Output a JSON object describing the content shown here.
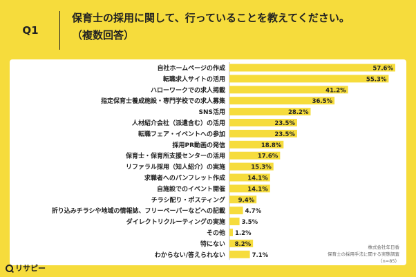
{
  "header": {
    "badge": "Q1",
    "question_line1": "保育士の採用に関して、行っていることを教えてください。",
    "question_line2": "（複数回答）"
  },
  "colors": {
    "background": "#f6dc3c",
    "bar": "#f6dc3c",
    "panel": "#ffffff",
    "text": "#222222"
  },
  "chart_data": {
    "type": "bar",
    "orientation": "horizontal",
    "categories": [
      "自社ホームページの作成",
      "転職求人サイトの活用",
      "ハローワークでの求人掲載",
      "指定保育士養成施設・専門学校での求人募集",
      "SNS活用",
      "人材紹介会社（派遣含む）の活用",
      "転職フェア・イベントへの参加",
      "採用PR動画の発信",
      "保育士・保育所支援センターの活用",
      "リファラル採用（知人紹介）の実施",
      "求職者へのパンフレット作成",
      "自施設でのイベント開催",
      "チラシ配り・ポスティング",
      "折り込みチラシや地域の情報誌、フリーペーパーなどへの記載",
      "ダイレクトリクルーティングの実施",
      "その他",
      "特にない",
      "わからない/答えられない"
    ],
    "values": [
      57.6,
      55.3,
      41.2,
      36.5,
      28.2,
      23.5,
      23.5,
      18.8,
      17.6,
      15.3,
      14.1,
      14.1,
      9.4,
      4.7,
      3.5,
      1.2,
      8.2,
      7.1
    ],
    "value_labels": [
      "57.6%",
      "55.3%",
      "41.2%",
      "36.5%",
      "28.2%",
      "23.5%",
      "23.5%",
      "18.8%",
      "17.6%",
      "15.3%",
      "14.1%",
      "14.1%",
      "9.4%",
      "4.7%",
      "3.5%",
      "1.2%",
      "8.2%",
      "7.1%"
    ],
    "xlim": [
      0,
      60
    ],
    "grid": false
  },
  "source": {
    "line1": "株式会社年日香",
    "line2": "保育士の採用手法に関する実態調査",
    "line3": "（n=85）"
  },
  "logo": {
    "text": "リサピー"
  }
}
